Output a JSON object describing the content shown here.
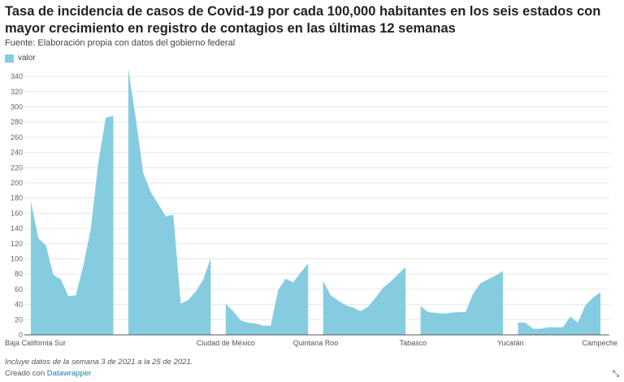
{
  "title": "Tasa de incidencia de casos de Covid-19 por cada 100,000 habitantes en los seis estados con mayor crecimiento en registro de contagios en las últimas 12 semanas",
  "source": "Fuente: Elaboración propia con datos del gobierno federal",
  "note": "Incluye datos de la semana 3 de 2021 a la 25 de 2021.",
  "credit_prefix": "Creado con",
  "credit_link": "Datawrapper",
  "chart_data": {
    "type": "area",
    "legend": {
      "position": "top-left",
      "entries": [
        "valor"
      ]
    },
    "color": "#86cce1",
    "ylim": [
      0,
      350
    ],
    "yticks": [
      0,
      20,
      40,
      60,
      80,
      100,
      120,
      140,
      160,
      180,
      200,
      220,
      240,
      260,
      280,
      300,
      320,
      340
    ],
    "grid": true,
    "xtick_labels": [
      {
        "index": 0,
        "label": "Baja California Sur"
      },
      {
        "index": 26,
        "label": "Ciudad de México"
      },
      {
        "index": 38,
        "label": "Quintana Roo"
      },
      {
        "index": 51,
        "label": "Tabasco"
      },
      {
        "index": 64,
        "label": "Yucatán"
      },
      {
        "index": 76,
        "label": "Campeche"
      }
    ],
    "series": [
      {
        "name": "valor",
        "values": [
          176,
          127,
          118,
          79,
          73,
          51,
          52,
          91,
          140,
          227,
          286,
          288,
          null,
          350,
          285,
          213,
          188,
          172,
          156,
          158,
          41,
          46,
          57,
          73,
          101,
          null,
          41,
          31,
          19,
          16,
          15,
          12,
          12,
          59,
          74,
          69,
          82,
          94,
          null,
          71,
          52,
          45,
          39,
          36,
          31,
          37,
          49,
          62,
          70,
          80,
          89,
          null,
          38,
          30,
          29,
          28,
          29,
          30,
          30,
          54,
          68,
          73,
          78,
          84,
          null,
          16,
          16,
          8,
          8,
          10,
          10,
          10,
          24,
          16,
          39,
          49,
          56
        ]
      }
    ]
  }
}
